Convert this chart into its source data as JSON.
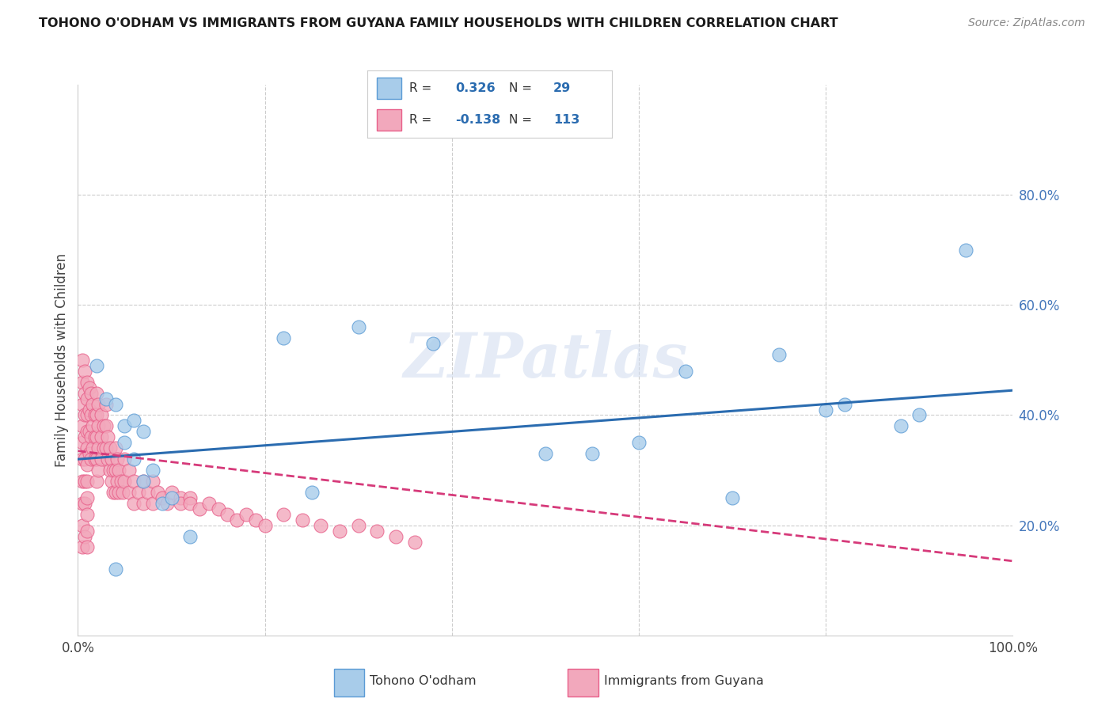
{
  "title": "TOHONO O'ODHAM VS IMMIGRANTS FROM GUYANA FAMILY HOUSEHOLDS WITH CHILDREN CORRELATION CHART",
  "source": "Source: ZipAtlas.com",
  "ylabel": "Family Households with Children",
  "xlim": [
    0.0,
    1.0
  ],
  "ylim": [
    0.0,
    1.0
  ],
  "xticks": [
    0.0,
    0.2,
    0.4,
    0.6,
    0.8,
    1.0
  ],
  "yticks": [
    0.0,
    0.2,
    0.4,
    0.6,
    0.8
  ],
  "xticklabels": [
    "0.0%",
    "",
    "",
    "",
    "",
    "100.0%"
  ],
  "yticklabels": [
    "",
    "20.0%",
    "40.0%",
    "60.0%",
    "80.0%"
  ],
  "blue_R": 0.326,
  "blue_N": 29,
  "pink_R": -0.138,
  "pink_N": 113,
  "blue_color": "#A8CCEA",
  "pink_color": "#F2A8BC",
  "blue_edge_color": "#5B9BD5",
  "pink_edge_color": "#E8608A",
  "blue_line_color": "#2B6CB0",
  "pink_line_color": "#D63A7A",
  "grid_color": "#CCCCCC",
  "background_color": "#FFFFFF",
  "watermark": "ZIPatlas",
  "legend_label_blue": "Tohono O'odham",
  "legend_label_pink": "Immigrants from Guyana",
  "blue_line_start_y": 0.32,
  "blue_line_end_y": 0.445,
  "pink_line_start_y": 0.335,
  "pink_line_end_y": 0.135,
  "blue_scatter_x": [
    0.02,
    0.03,
    0.04,
    0.04,
    0.05,
    0.05,
    0.06,
    0.06,
    0.07,
    0.07,
    0.08,
    0.09,
    0.1,
    0.12,
    0.22,
    0.25,
    0.3,
    0.38,
    0.5,
    0.55,
    0.6,
    0.65,
    0.7,
    0.75,
    0.8,
    0.82,
    0.88,
    0.9,
    0.95
  ],
  "blue_scatter_y": [
    0.49,
    0.43,
    0.42,
    0.12,
    0.38,
    0.35,
    0.39,
    0.32,
    0.37,
    0.28,
    0.3,
    0.24,
    0.25,
    0.18,
    0.54,
    0.26,
    0.56,
    0.53,
    0.33,
    0.33,
    0.35,
    0.48,
    0.25,
    0.51,
    0.41,
    0.42,
    0.38,
    0.4,
    0.7
  ],
  "pink_scatter_x": [
    0.005,
    0.005,
    0.005,
    0.005,
    0.005,
    0.005,
    0.005,
    0.005,
    0.005,
    0.005,
    0.007,
    0.007,
    0.007,
    0.007,
    0.007,
    0.007,
    0.007,
    0.007,
    0.01,
    0.01,
    0.01,
    0.01,
    0.01,
    0.01,
    0.01,
    0.01,
    0.01,
    0.01,
    0.01,
    0.012,
    0.012,
    0.012,
    0.012,
    0.014,
    0.014,
    0.014,
    0.014,
    0.016,
    0.016,
    0.016,
    0.018,
    0.018,
    0.018,
    0.02,
    0.02,
    0.02,
    0.02,
    0.02,
    0.022,
    0.022,
    0.022,
    0.022,
    0.025,
    0.025,
    0.025,
    0.028,
    0.028,
    0.03,
    0.03,
    0.03,
    0.032,
    0.032,
    0.034,
    0.034,
    0.036,
    0.036,
    0.038,
    0.038,
    0.04,
    0.04,
    0.04,
    0.042,
    0.042,
    0.044,
    0.044,
    0.046,
    0.048,
    0.05,
    0.05,
    0.055,
    0.055,
    0.06,
    0.06,
    0.065,
    0.07,
    0.07,
    0.075,
    0.08,
    0.08,
    0.085,
    0.09,
    0.095,
    0.1,
    0.11,
    0.11,
    0.12,
    0.12,
    0.13,
    0.14,
    0.15,
    0.16,
    0.17,
    0.18,
    0.19,
    0.2,
    0.22,
    0.24,
    0.26,
    0.28,
    0.3,
    0.32,
    0.34,
    0.36
  ],
  "pink_scatter_y": [
    0.5,
    0.46,
    0.42,
    0.38,
    0.35,
    0.32,
    0.28,
    0.24,
    0.2,
    0.16,
    0.48,
    0.44,
    0.4,
    0.36,
    0.32,
    0.28,
    0.24,
    0.18,
    0.46,
    0.43,
    0.4,
    0.37,
    0.34,
    0.31,
    0.28,
    0.25,
    0.22,
    0.19,
    0.16,
    0.45,
    0.41,
    0.37,
    0.33,
    0.44,
    0.4,
    0.36,
    0.32,
    0.42,
    0.38,
    0.34,
    0.4,
    0.36,
    0.32,
    0.44,
    0.4,
    0.36,
    0.32,
    0.28,
    0.42,
    0.38,
    0.34,
    0.3,
    0.4,
    0.36,
    0.32,
    0.38,
    0.34,
    0.42,
    0.38,
    0.34,
    0.36,
    0.32,
    0.34,
    0.3,
    0.32,
    0.28,
    0.3,
    0.26,
    0.34,
    0.3,
    0.26,
    0.32,
    0.28,
    0.3,
    0.26,
    0.28,
    0.26,
    0.32,
    0.28,
    0.3,
    0.26,
    0.28,
    0.24,
    0.26,
    0.24,
    0.28,
    0.26,
    0.28,
    0.24,
    0.26,
    0.25,
    0.24,
    0.26,
    0.25,
    0.24,
    0.25,
    0.24,
    0.23,
    0.24,
    0.23,
    0.22,
    0.21,
    0.22,
    0.21,
    0.2,
    0.22,
    0.21,
    0.2,
    0.19,
    0.2,
    0.19,
    0.18,
    0.17
  ]
}
